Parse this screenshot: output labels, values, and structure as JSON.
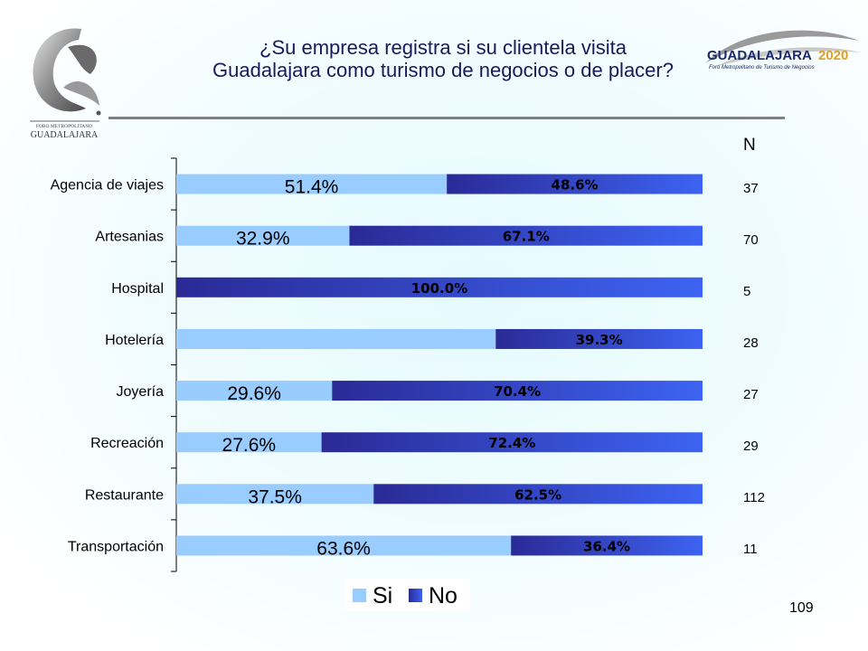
{
  "slide": {
    "title_line1": "¿Su empresa registra si su clientela visita",
    "title_line2": "Guadalajara como turismo de negocios o de placer?",
    "page_number": "109",
    "logo_left": {
      "text_top": "FORO METROPOLITANO",
      "text_bottom": "GUADALAJARA"
    },
    "logo_right": {
      "text_main": "GUADALAJARA",
      "text_year": "2020",
      "text_sub": "Foro Metropolitano de Turismo de Negocios"
    }
  },
  "n_column": {
    "header": "N",
    "values": [
      "37",
      "70",
      "5",
      "28",
      "27",
      "29",
      "112",
      "11"
    ]
  },
  "colors": {
    "si": "#99ccff",
    "no_dark": "#2a2a96",
    "no_light": "#3d63f2",
    "title": "#1a1a5a"
  },
  "chart_data": {
    "type": "bar",
    "orientation": "horizontal",
    "stacked": "percent",
    "categories": [
      "Agencia de viajes",
      "Artesanias",
      "Hospital",
      "Hotelería",
      "Joyería",
      "Recreación",
      "Restaurante",
      "Transportación"
    ],
    "series": [
      {
        "name": "Si",
        "values": [
          51.4,
          32.9,
          0.0,
          60.7,
          29.6,
          27.6,
          37.5,
          63.6
        ],
        "labels": [
          "51.4%",
          "32.9%",
          "",
          "",
          "29.6%",
          "27.6%",
          "37.5%",
          "63.6%"
        ]
      },
      {
        "name": "No",
        "values": [
          48.6,
          67.1,
          100.0,
          39.3,
          70.4,
          72.4,
          62.5,
          36.4
        ],
        "labels": [
          "48.6%",
          "67.1%",
          "100.0%",
          "39.3%",
          "70.4%",
          "72.4%",
          "62.5%",
          "36.4%"
        ]
      }
    ],
    "xlim": [
      0,
      100
    ],
    "legend_position": "bottom",
    "grid": false
  }
}
